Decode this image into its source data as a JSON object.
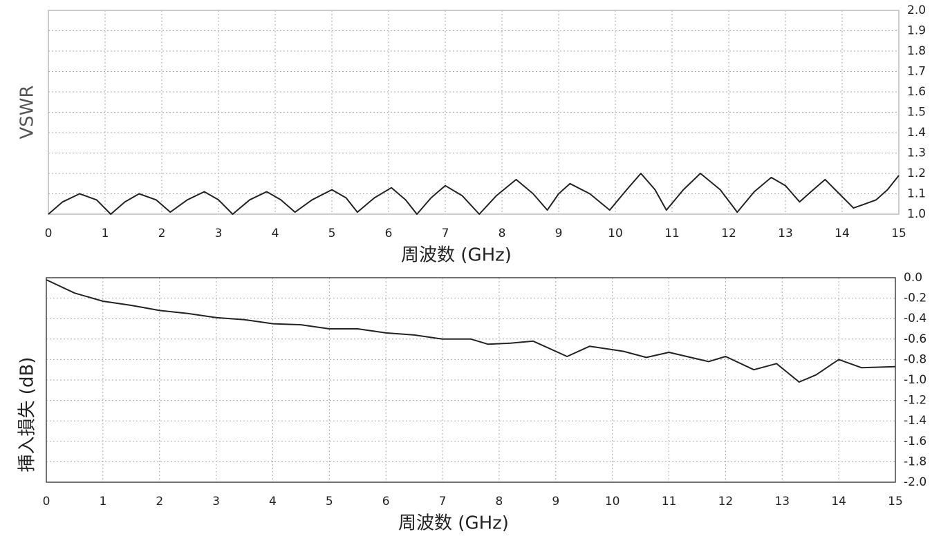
{
  "chart_data": [
    {
      "type": "line",
      "ylabel": "VSWR",
      "xlabel": "周波数 (GHz)",
      "color": "#222222",
      "grid": true,
      "xlim": [
        0,
        15
      ],
      "xticks": [
        0,
        1,
        2,
        3,
        4,
        5,
        6,
        7,
        8,
        9,
        10,
        11,
        12,
        13,
        14,
        15
      ],
      "ylim": [
        1,
        2
      ],
      "yticks": [
        {
          "value": 1,
          "label": "1.0"
        },
        1.1,
        1.2,
        1.3,
        1.4,
        1.5,
        1.6,
        1.7,
        1.8,
        1.9,
        {
          "value": 2,
          "label": "2.0"
        }
      ],
      "x": [
        0,
        0.25,
        0.55,
        0.85,
        1.1,
        1.35,
        1.6,
        1.9,
        2.15,
        2.45,
        2.75,
        3.0,
        3.25,
        3.55,
        3.85,
        4.1,
        4.35,
        4.65,
        5.0,
        5.25,
        5.45,
        5.75,
        6.05,
        6.3,
        6.5,
        6.75,
        7.0,
        7.3,
        7.6,
        7.9,
        8.25,
        8.55,
        8.8,
        9.0,
        9.2,
        9.55,
        9.9,
        10.2,
        10.45,
        10.7,
        10.9,
        11.2,
        11.5,
        11.85,
        12.15,
        12.45,
        12.75,
        13.0,
        13.25,
        13.45,
        13.7,
        13.95,
        14.2,
        14.4,
        14.6,
        14.8,
        15.0
      ],
      "values": [
        1.0,
        1.06,
        1.1,
        1.07,
        1.0,
        1.06,
        1.1,
        1.07,
        1.01,
        1.07,
        1.11,
        1.07,
        1.0,
        1.07,
        1.11,
        1.07,
        1.01,
        1.07,
        1.12,
        1.08,
        1.01,
        1.08,
        1.13,
        1.07,
        1.0,
        1.08,
        1.14,
        1.09,
        1.0,
        1.09,
        1.17,
        1.1,
        1.02,
        1.1,
        1.15,
        1.1,
        1.02,
        1.12,
        1.2,
        1.12,
        1.02,
        1.12,
        1.2,
        1.12,
        1.01,
        1.11,
        1.18,
        1.14,
        1.06,
        1.11,
        1.17,
        1.1,
        1.03,
        1.05,
        1.07,
        1.12,
        1.19
      ]
    },
    {
      "type": "line",
      "ylabel": "挿入損失 (dB)",
      "xlabel": "周波数 (GHz)",
      "color": "#222222",
      "grid": true,
      "xlim": [
        0,
        15
      ],
      "xticks": [
        0,
        1,
        2,
        3,
        4,
        5,
        6,
        7,
        8,
        9,
        10,
        11,
        12,
        13,
        14,
        15
      ],
      "ylim": [
        -2,
        0
      ],
      "yticks": [
        {
          "value": 0,
          "label": "0.0"
        },
        -0.2,
        -0.4,
        -0.6,
        -0.8,
        {
          "value": -1,
          "label": "-1.0"
        },
        -1.2,
        -1.4,
        -1.6,
        -1.8,
        {
          "value": -2,
          "label": "-2.0"
        }
      ],
      "x": [
        0,
        0.5,
        1,
        1.5,
        2,
        2.5,
        3,
        3.5,
        4,
        4.5,
        5,
        5.5,
        6,
        6.5,
        7,
        7.5,
        7.8,
        8.2,
        8.6,
        9.2,
        9.6,
        10.2,
        10.6,
        11.0,
        11.7,
        12.0,
        12.5,
        12.9,
        13.3,
        13.6,
        14.0,
        14.4,
        15.0
      ],
      "values": [
        -0.02,
        -0.15,
        -0.23,
        -0.27,
        -0.32,
        -0.35,
        -0.39,
        -0.41,
        -0.45,
        -0.46,
        -0.5,
        -0.5,
        -0.54,
        -0.56,
        -0.6,
        -0.6,
        -0.65,
        -0.64,
        -0.62,
        -0.77,
        -0.67,
        -0.72,
        -0.78,
        -0.73,
        -0.82,
        -0.77,
        -0.9,
        -0.84,
        -1.02,
        -0.95,
        -0.8,
        -0.88,
        -0.87
      ]
    }
  ]
}
